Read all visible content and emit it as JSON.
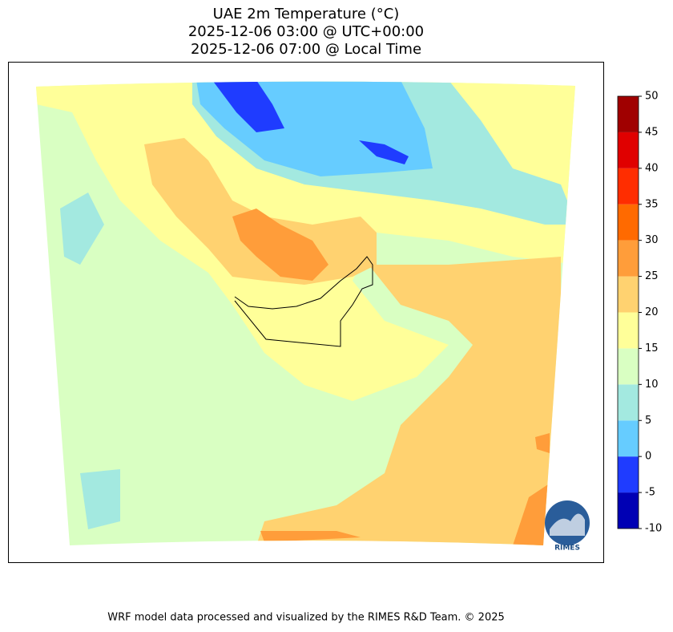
{
  "title": [
    "UAE 2m Temperature (°C)",
    "2025-12-06 03:00 @ UTC+00:00",
    "2025-12-06 07:00 @ Local Time"
  ],
  "colorbar": {
    "ticks": [
      -10,
      -5,
      0,
      5,
      10,
      15,
      20,
      25,
      30,
      35,
      40,
      45,
      50
    ],
    "colors": [
      "#0000b4",
      "#1f3cff",
      "#66ccff",
      "#a3e9e0",
      "#d9ffc2",
      "#ffff99",
      "#ffd270",
      "#ff9d3a",
      "#ff6a00",
      "#ff2d00",
      "#e00000",
      "#a00000"
    ]
  },
  "footer": "WRF model data processed and visualized by the RIMES R&D Team. © 2025",
  "logo": "RIMES"
}
